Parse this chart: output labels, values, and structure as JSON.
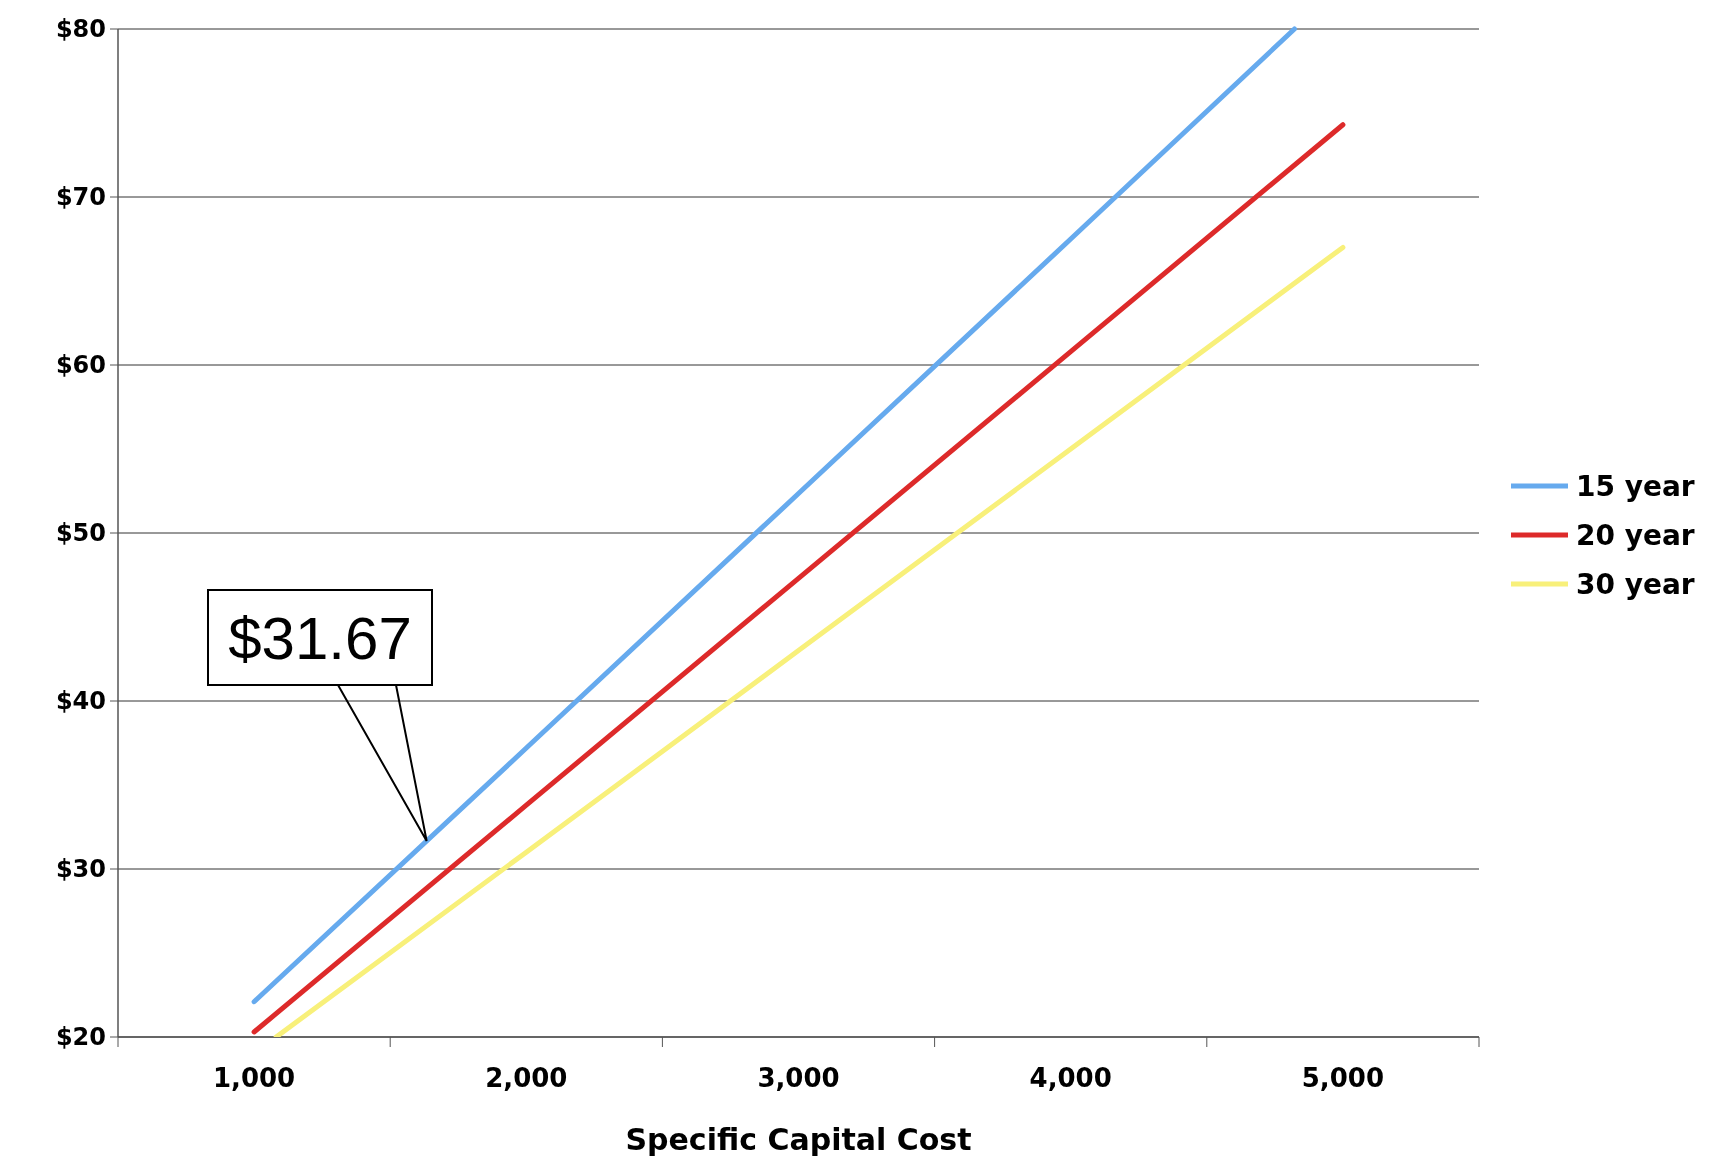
{
  "chart_data": {
    "type": "line",
    "xlabel": "Specific Capital Cost",
    "xlim": [
      500,
      5500
    ],
    "xticks": [
      {
        "value": 500,
        "label": null
      },
      {
        "value": 1000,
        "label": "1,000"
      },
      {
        "value": 1500,
        "label": null
      },
      {
        "value": 2000,
        "label": "2,000"
      },
      {
        "value": 2500,
        "label": null
      },
      {
        "value": 3000,
        "label": "3,000"
      },
      {
        "value": 3500,
        "label": null
      },
      {
        "value": 4000,
        "label": "4,000"
      },
      {
        "value": 4500,
        "label": null
      },
      {
        "value": 5000,
        "label": "5,000"
      },
      {
        "value": 5500,
        "label": null
      }
    ],
    "ylim": [
      20,
      80
    ],
    "yticks": [
      {
        "value": 20,
        "label": "$20"
      },
      {
        "value": 30,
        "label": "$30"
      },
      {
        "value": 40,
        "label": "$40"
      },
      {
        "value": 50,
        "label": "$50"
      },
      {
        "value": 60,
        "label": "$60"
      },
      {
        "value": 70,
        "label": "$70"
      },
      {
        "value": 80,
        "label": "$80"
      }
    ],
    "grid": "y",
    "legend": "right",
    "marker": "none",
    "line_style": "solid",
    "series": [
      {
        "name": "15 year",
        "color": "#66aaee",
        "x": [
          1000,
          2000,
          3000,
          4000,
          4822
        ],
        "values": [
          22.1,
          37.2,
          52.35,
          67.5,
          80
        ]
      },
      {
        "name": "20 year",
        "color": "#dd2a2a",
        "x": [
          1000,
          2000,
          3000,
          4000,
          5000
        ],
        "values": [
          20.3,
          33.8,
          47.3,
          60.8,
          74.3
        ]
      },
      {
        "name": "30 year",
        "color": "#f8f07a",
        "x": [
          1081,
          2000,
          3000,
          4000,
          5000
        ],
        "values": [
          20,
          31,
          43,
          55,
          67
        ]
      }
    ],
    "annotations": [
      {
        "text": "$31.67",
        "x": 1634,
        "y": 31.67
      }
    ]
  }
}
